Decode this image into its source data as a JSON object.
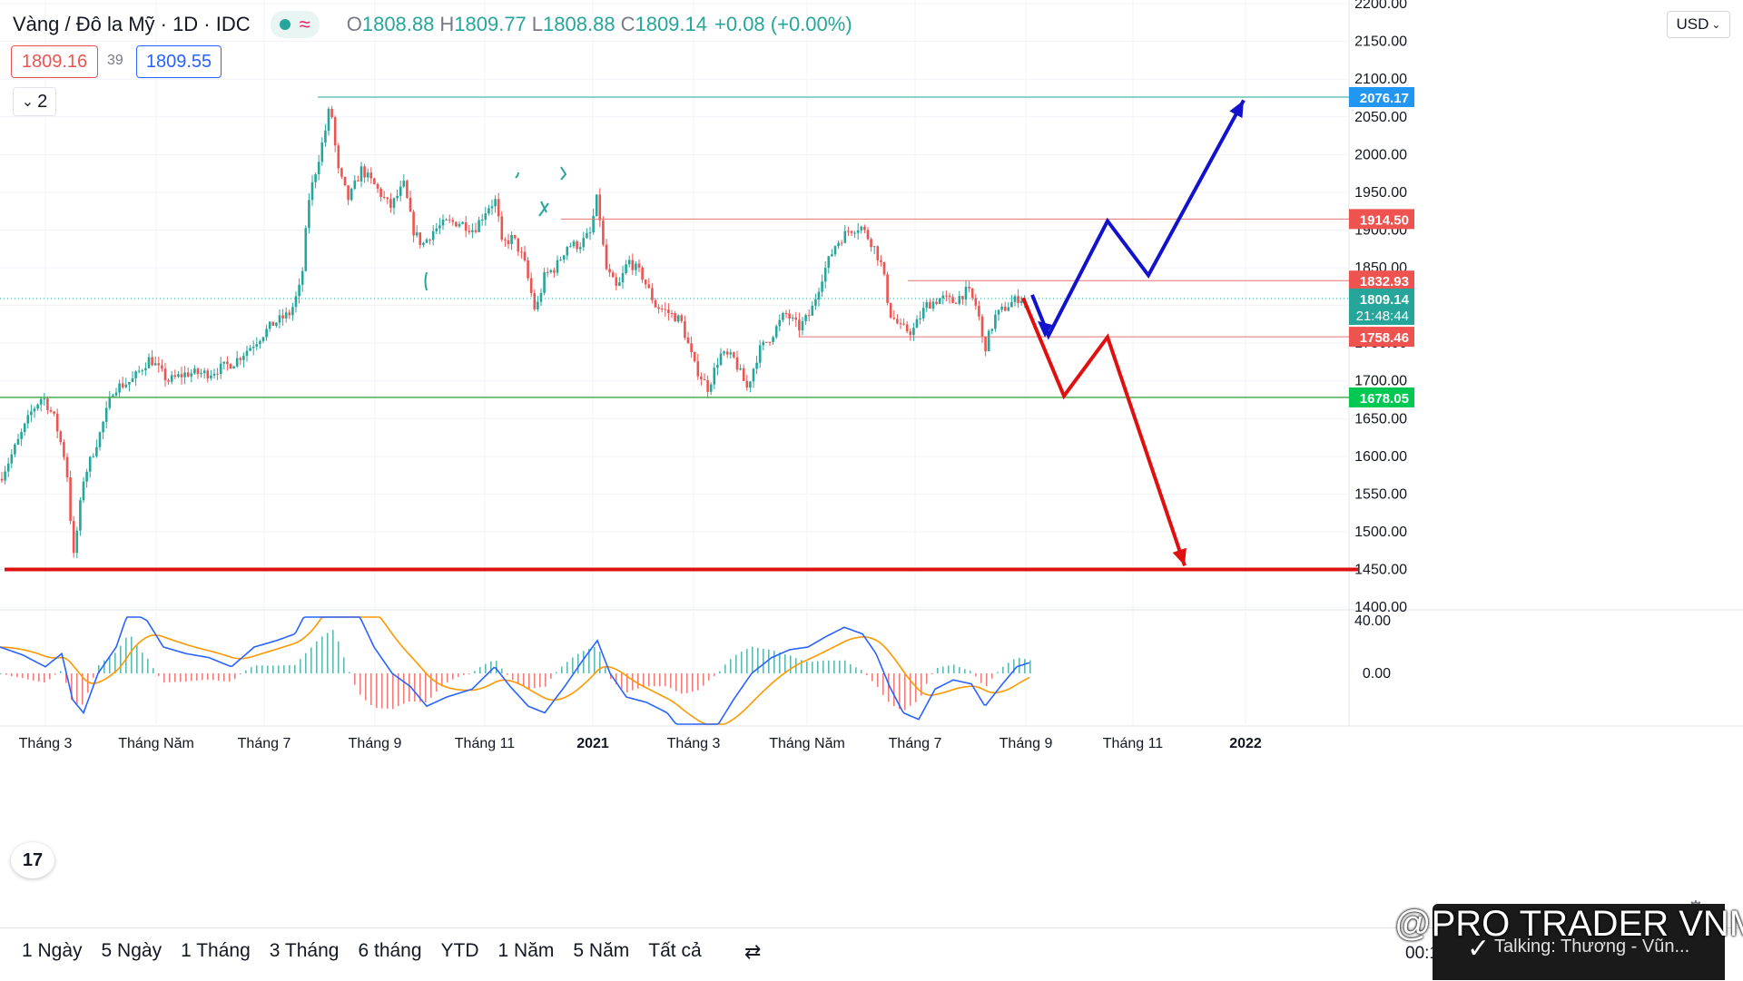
{
  "header": {
    "symbol": "Vàng / Đô la Mỹ · 1D · IDC",
    "wave_icon": "≈",
    "o_label": "O",
    "o_value": "1808.88",
    "h_label": "H",
    "h_value": "1809.77",
    "l_label": "L",
    "l_value": "1808.88",
    "c_label": "C",
    "c_value": "1809.14",
    "change": "+0.08 (+0.00%)",
    "bid": "1809.16",
    "spread": "39",
    "ask": "1809.55",
    "collapse_label": "2"
  },
  "currency_select": "USD",
  "colors": {
    "up": "#26a69a",
    "down": "#ef5350",
    "blue_arrow": "#1212cc",
    "red_arrow": "#e01010",
    "resistance": "#e57373",
    "support": "#4caf50",
    "top_line": "#26a69a",
    "macd_line": "#2962ff",
    "signal_line": "#ff9800"
  },
  "chart_data": [
    {
      "type": "candlestick",
      "ylim": [
        1400,
        2200
      ],
      "yticks": [
        "1400.00",
        "1450.00",
        "1500.00",
        "1550.00",
        "1600.00",
        "1650.00",
        "1700.00",
        "1750.00",
        "1800.00",
        "1850.00",
        "1900.00",
        "1950.00",
        "2000.00",
        "2050.00",
        "2100.00",
        "2150.00",
        "2200.00"
      ],
      "xticks": [
        "Tháng 3",
        "Tháng Năm",
        "Tháng 7",
        "Tháng 9",
        "Tháng 11",
        "2021",
        "Tháng 3",
        "Tháng Năm",
        "Tháng 7",
        "Tháng 9",
        "Tháng 11",
        "2022"
      ],
      "price_anchors": [
        {
          "t": 0,
          "v": 1570
        },
        {
          "t": 20,
          "v": 1620
        },
        {
          "t": 35,
          "v": 1660
        },
        {
          "t": 47,
          "v": 1680
        },
        {
          "t": 60,
          "v": 1650
        },
        {
          "t": 73,
          "v": 1590
        },
        {
          "t": 81,
          "v": 1465
        },
        {
          "t": 92,
          "v": 1570
        },
        {
          "t": 110,
          "v": 1630
        },
        {
          "t": 125,
          "v": 1690
        },
        {
          "t": 145,
          "v": 1700
        },
        {
          "t": 165,
          "v": 1730
        },
        {
          "t": 185,
          "v": 1700
        },
        {
          "t": 205,
          "v": 1710
        },
        {
          "t": 230,
          "v": 1710
        },
        {
          "t": 258,
          "v": 1725
        },
        {
          "t": 280,
          "v": 1750
        },
        {
          "t": 300,
          "v": 1775
        },
        {
          "t": 320,
          "v": 1790
        },
        {
          "t": 332,
          "v": 1830
        },
        {
          "t": 340,
          "v": 1940
        },
        {
          "t": 350,
          "v": 1990
        },
        {
          "t": 358,
          "v": 2030
        },
        {
          "t": 364,
          "v": 2068
        },
        {
          "t": 372,
          "v": 1980
        },
        {
          "t": 384,
          "v": 1940
        },
        {
          "t": 398,
          "v": 1980
        },
        {
          "t": 412,
          "v": 1960
        },
        {
          "t": 430,
          "v": 1930
        },
        {
          "t": 445,
          "v": 1960
        },
        {
          "t": 455,
          "v": 1900
        },
        {
          "t": 465,
          "v": 1880
        },
        {
          "t": 478,
          "v": 1900
        },
        {
          "t": 492,
          "v": 1910
        },
        {
          "t": 507,
          "v": 1910
        },
        {
          "t": 522,
          "v": 1900
        },
        {
          "t": 537,
          "v": 1930
        },
        {
          "t": 547,
          "v": 1940
        },
        {
          "t": 552,
          "v": 1880
        },
        {
          "t": 565,
          "v": 1890
        },
        {
          "t": 577,
          "v": 1860
        },
        {
          "t": 590,
          "v": 1790
        },
        {
          "t": 600,
          "v": 1840
        },
        {
          "t": 612,
          "v": 1850
        },
        {
          "t": 625,
          "v": 1880
        },
        {
          "t": 638,
          "v": 1880
        },
        {
          "t": 650,
          "v": 1895
        },
        {
          "t": 658,
          "v": 1945
        },
        {
          "t": 667,
          "v": 1850
        },
        {
          "t": 680,
          "v": 1820
        },
        {
          "t": 692,
          "v": 1860
        },
        {
          "t": 707,
          "v": 1840
        },
        {
          "t": 722,
          "v": 1800
        },
        {
          "t": 737,
          "v": 1790
        },
        {
          "t": 750,
          "v": 1780
        },
        {
          "t": 765,
          "v": 1720
        },
        {
          "t": 780,
          "v": 1690
        },
        {
          "t": 793,
          "v": 1735
        },
        {
          "t": 808,
          "v": 1730
        },
        {
          "t": 823,
          "v": 1690
        },
        {
          "t": 836,
          "v": 1740
        },
        {
          "t": 850,
          "v": 1760
        },
        {
          "t": 865,
          "v": 1790
        },
        {
          "t": 880,
          "v": 1770
        },
        {
          "t": 893,
          "v": 1790
        },
        {
          "t": 906,
          "v": 1840
        },
        {
          "t": 920,
          "v": 1880
        },
        {
          "t": 935,
          "v": 1900
        },
        {
          "t": 948,
          "v": 1905
        },
        {
          "t": 962,
          "v": 1880
        },
        {
          "t": 972,
          "v": 1850
        },
        {
          "t": 980,
          "v": 1790
        },
        {
          "t": 992,
          "v": 1770
        },
        {
          "t": 1005,
          "v": 1765
        },
        {
          "t": 1020,
          "v": 1800
        },
        {
          "t": 1037,
          "v": 1810
        },
        {
          "t": 1050,
          "v": 1805
        },
        {
          "t": 1066,
          "v": 1820
        },
        {
          "t": 1077,
          "v": 1795
        },
        {
          "t": 1084,
          "v": 1740
        },
        {
          "t": 1096,
          "v": 1785
        },
        {
          "t": 1110,
          "v": 1800
        },
        {
          "t": 1122,
          "v": 1810
        },
        {
          "t": 1132,
          "v": 1809
        }
      ],
      "levels": [
        {
          "name": "top",
          "value": 2076.17,
          "label": "2076.17"
        },
        {
          "name": "resistance-1",
          "value": 1914.5,
          "label": "1914.50"
        },
        {
          "name": "resistance-2",
          "value": 1832.93,
          "label": "1832.93"
        },
        {
          "name": "current",
          "value": 1809.14,
          "label": "1809.14",
          "countdown": "21:48:44"
        },
        {
          "name": "support-1",
          "value": 1758.46,
          "label": "1758.46"
        },
        {
          "name": "support-2",
          "value": 1678.05,
          "label": "1678.05"
        },
        {
          "name": "floor",
          "value": 1450,
          "label": ""
        }
      ],
      "blue_scenario": [
        [
          1137,
          1814
        ],
        [
          1155,
          1760
        ],
        [
          1220,
          1912
        ],
        [
          1265,
          1840
        ],
        [
          1370,
          2072
        ]
      ],
      "red_scenario": [
        [
          1127,
          1810
        ],
        [
          1172,
          1680
        ],
        [
          1220,
          1758
        ],
        [
          1305,
          1455
        ]
      ]
    },
    {
      "type": "macd",
      "ylim": [
        -70,
        70
      ],
      "yticks": [
        "40.00",
        "0.00"
      ],
      "macd_anchors": [
        [
          0,
          20
        ],
        [
          25,
          14
        ],
        [
          50,
          5
        ],
        [
          68,
          15
        ],
        [
          80,
          -20
        ],
        [
          92,
          -30
        ],
        [
          108,
          0
        ],
        [
          128,
          20
        ],
        [
          142,
          48
        ],
        [
          162,
          40
        ],
        [
          180,
          20
        ],
        [
          205,
          15
        ],
        [
          230,
          12
        ],
        [
          255,
          5
        ],
        [
          280,
          20
        ],
        [
          305,
          25
        ],
        [
          325,
          30
        ],
        [
          340,
          50
        ],
        [
          352,
          70
        ],
        [
          368,
          95
        ],
        [
          380,
          75
        ],
        [
          395,
          45
        ],
        [
          412,
          20
        ],
        [
          432,
          0
        ],
        [
          452,
          -10
        ],
        [
          470,
          -25
        ],
        [
          492,
          -18
        ],
        [
          520,
          -12
        ],
        [
          545,
          5
        ],
        [
          562,
          -10
        ],
        [
          582,
          -25
        ],
        [
          600,
          -30
        ],
        [
          622,
          -10
        ],
        [
          642,
          10
        ],
        [
          658,
          25
        ],
        [
          672,
          0
        ],
        [
          690,
          -18
        ],
        [
          712,
          -22
        ],
        [
          735,
          -30
        ],
        [
          752,
          -45
        ],
        [
          770,
          -50
        ],
        [
          790,
          -40
        ],
        [
          808,
          -20
        ],
        [
          828,
          0
        ],
        [
          850,
          12
        ],
        [
          870,
          18
        ],
        [
          890,
          20
        ],
        [
          910,
          28
        ],
        [
          930,
          35
        ],
        [
          950,
          30
        ],
        [
          965,
          15
        ],
        [
          980,
          -10
        ],
        [
          995,
          -30
        ],
        [
          1012,
          -35
        ],
        [
          1030,
          -12
        ],
        [
          1050,
          -5
        ],
        [
          1070,
          -8
        ],
        [
          1085,
          -25
        ],
        [
          1102,
          -10
        ],
        [
          1120,
          5
        ],
        [
          1133,
          8
        ]
      ]
    }
  ],
  "time_ranges": [
    "1 Ngày",
    "5 Ngày",
    "1 Tháng",
    "3 Tháng",
    "6 tháng",
    "YTD",
    "1 Năm",
    "5 Năm",
    "Tất cả"
  ],
  "clock": "00:1",
  "watermark": {
    "title": "@PRO TRADER VNM",
    "subtitle": "Talking: Thương - Vũn..."
  }
}
